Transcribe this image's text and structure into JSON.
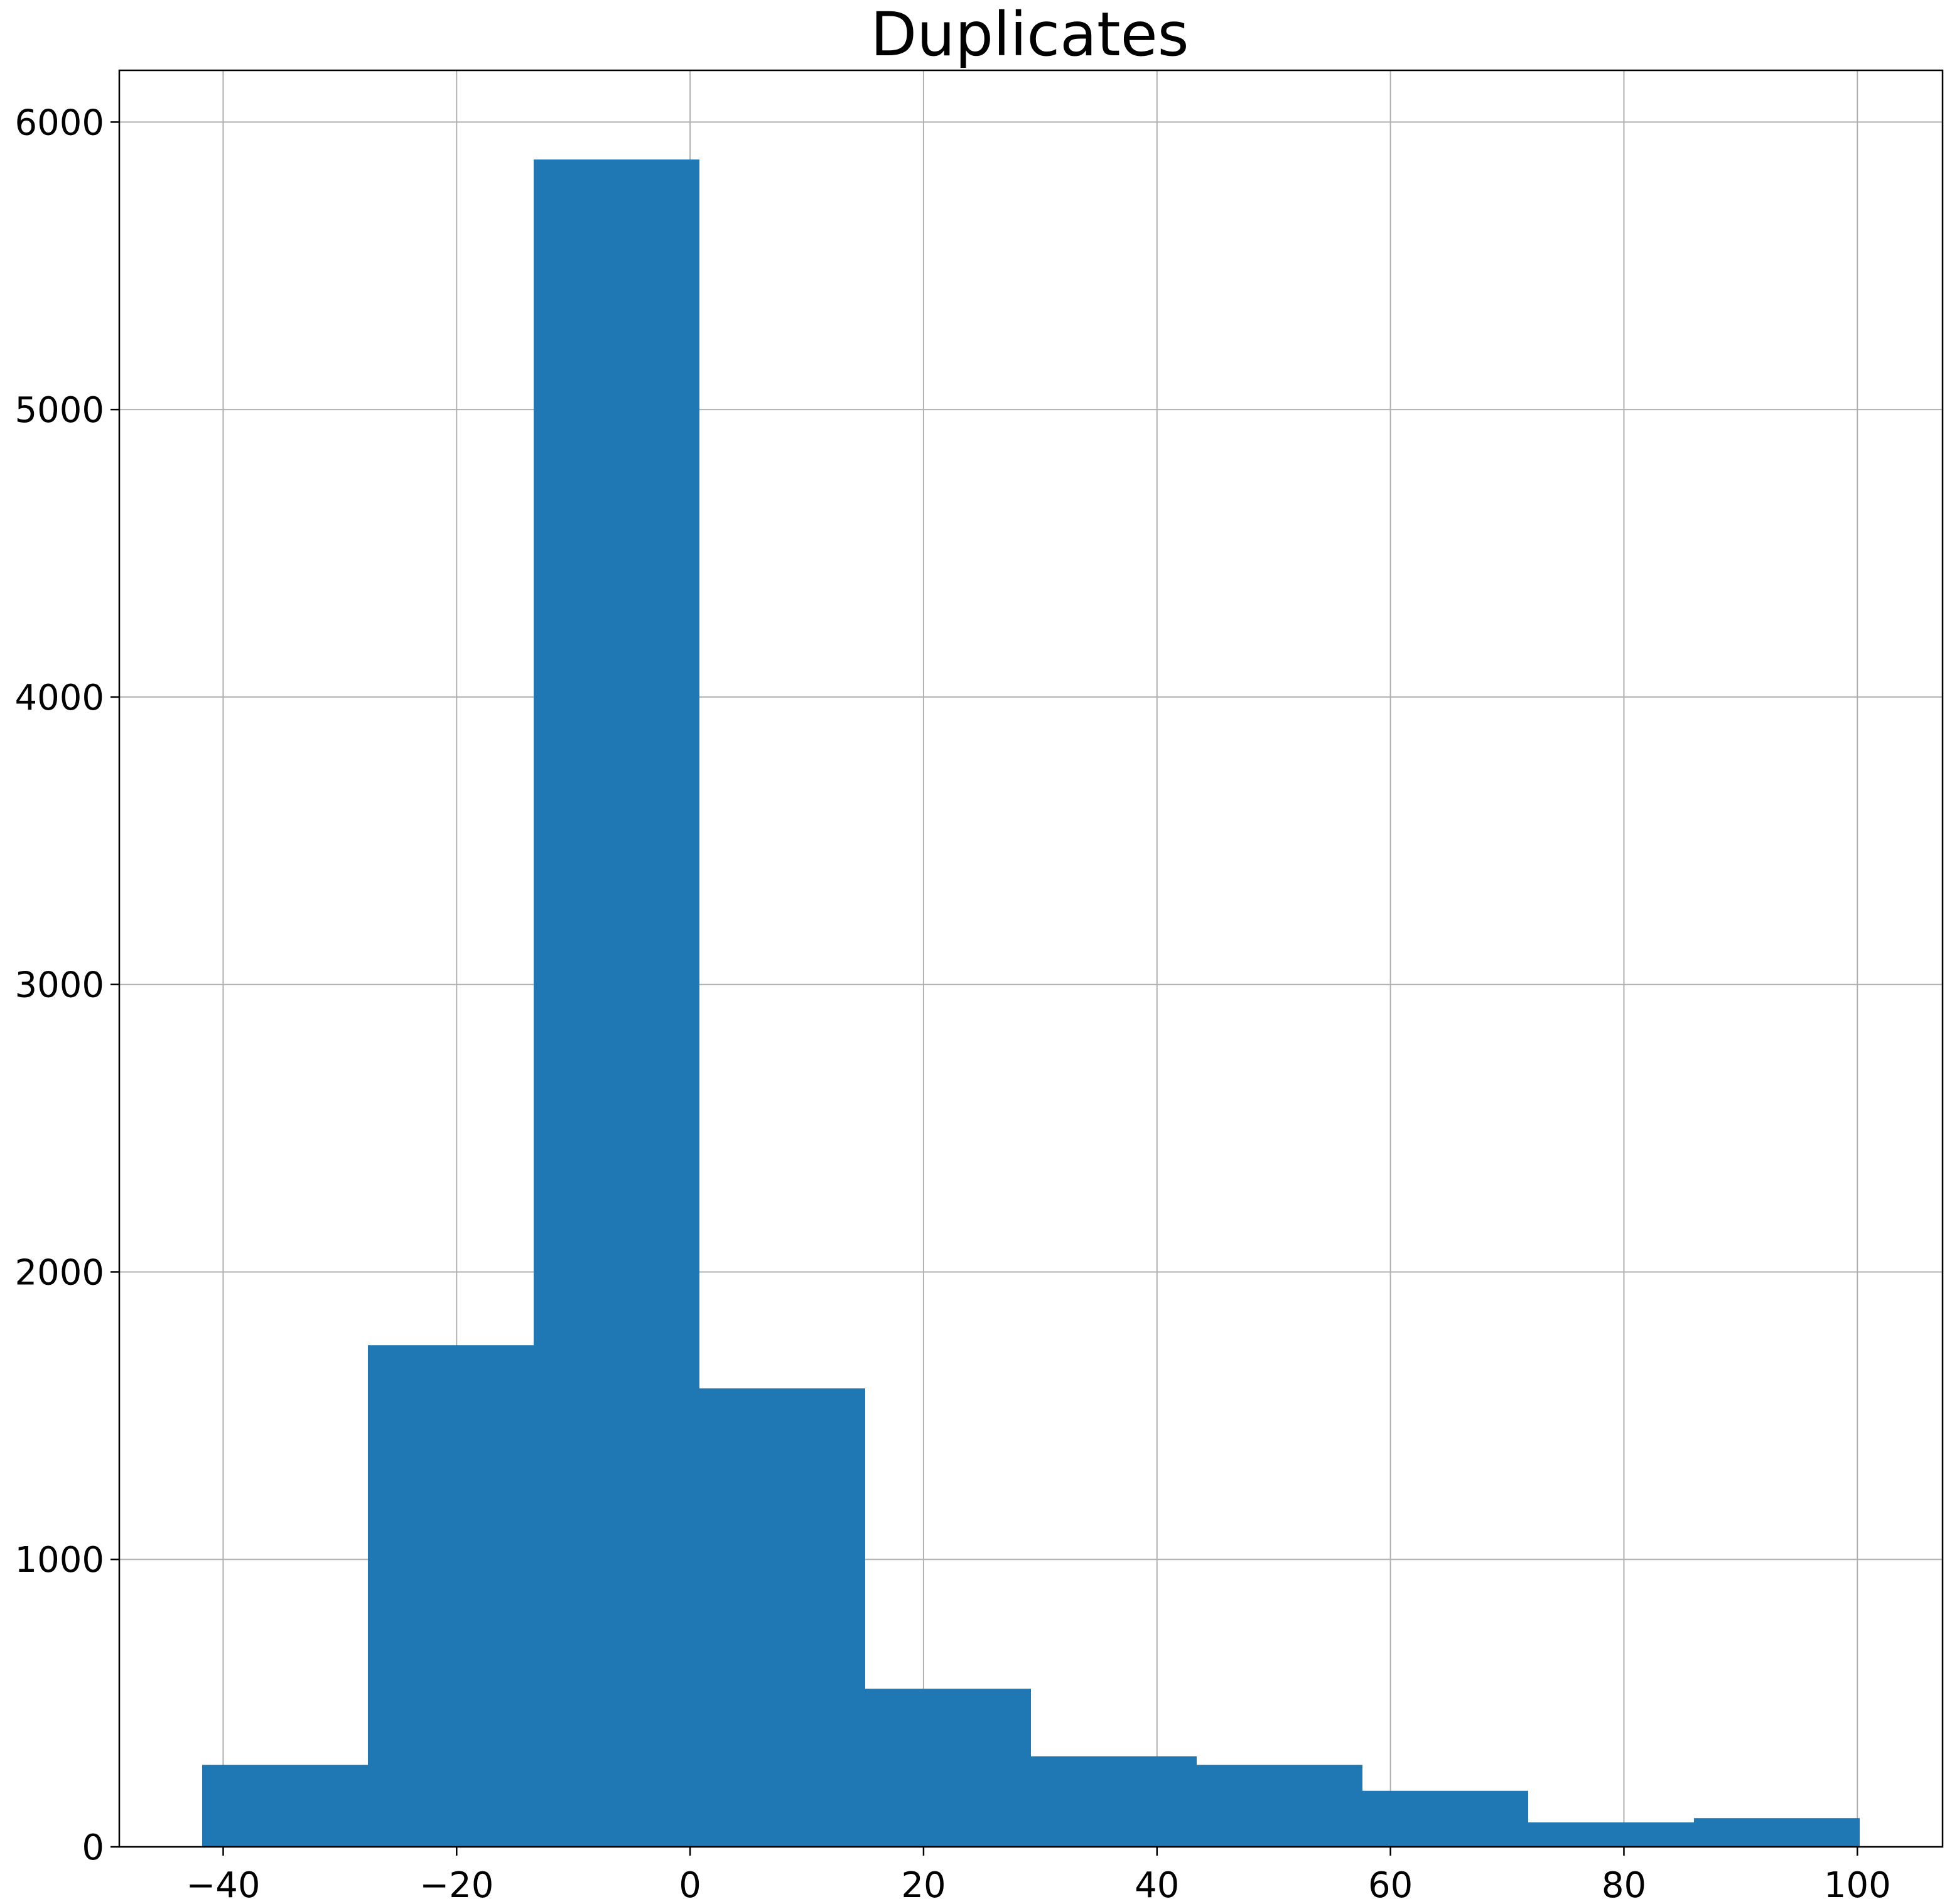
{
  "chart_data": {
    "type": "bar",
    "title": "Duplicates",
    "xlabel": "",
    "ylabel": "",
    "xlim": [
      -48.9,
      107.3
    ],
    "ylim": [
      0,
      6180
    ],
    "grid": true,
    "bar_color": "#1f77b4",
    "bins": [
      {
        "x0": -41.8,
        "x1": -27.6,
        "value": 285
      },
      {
        "x0": -27.6,
        "x1": -13.4,
        "value": 1745
      },
      {
        "x0": -13.4,
        "x1": 0.8,
        "value": 5870
      },
      {
        "x0": 0.8,
        "x1": 15.0,
        "value": 1595
      },
      {
        "x0": 15.0,
        "x1": 29.2,
        "value": 550
      },
      {
        "x0": 29.2,
        "x1": 43.4,
        "value": 315
      },
      {
        "x0": 43.4,
        "x1": 57.6,
        "value": 285
      },
      {
        "x0": 57.6,
        "x1": 71.8,
        "value": 195
      },
      {
        "x0": 71.8,
        "x1": 86.0,
        "value": 85
      },
      {
        "x0": 86.0,
        "x1": 100.2,
        "value": 100
      }
    ],
    "xticks": [
      -40,
      -20,
      0,
      20,
      40,
      60,
      80,
      100
    ],
    "xtick_labels": [
      "−40",
      "−20",
      "0",
      "20",
      "40",
      "60",
      "80",
      "100"
    ],
    "yticks": [
      0,
      1000,
      2000,
      3000,
      4000,
      5000,
      6000
    ],
    "ytick_labels": [
      "0",
      "1000",
      "2000",
      "3000",
      "4000",
      "5000",
      "6000"
    ]
  }
}
